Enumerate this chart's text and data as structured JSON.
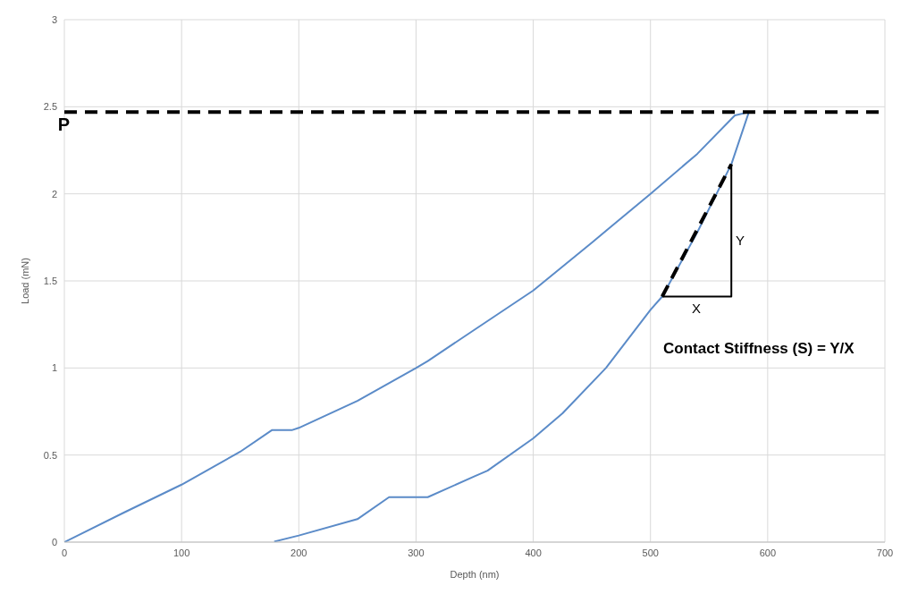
{
  "chart_data": {
    "type": "line",
    "xlabel": "Depth (nm)",
    "ylabel": "Load (mN)",
    "xlim": [
      0,
      700
    ],
    "xticks": [
      0,
      100,
      200,
      300,
      400,
      500,
      600,
      700
    ],
    "ylim": [
      0,
      3
    ],
    "yticks": [
      0,
      0.5,
      1,
      1.5,
      2,
      2.5,
      3
    ],
    "grid": true,
    "marker": "none",
    "series": [
      {
        "color": "#5b8bc8",
        "line_style": "solid",
        "x": [
          0,
          50,
          100,
          150,
          177,
          194,
          200,
          250,
          300,
          310,
          350,
          400,
          450,
          500,
          540,
          572,
          584
        ],
        "values": [
          0,
          0.167,
          0.33,
          0.519,
          0.643,
          0.643,
          0.656,
          0.811,
          1.0,
          1.04,
          1.22,
          1.445,
          1.72,
          2.0,
          2.23,
          2.45,
          2.47
        ]
      },
      {
        "color": "#5b8bc8",
        "line_style": "solid",
        "x": [
          179,
          200,
          250,
          277,
          310,
          350,
          361,
          400,
          425,
          462,
          500,
          510,
          540,
          569,
          584
        ],
        "values": [
          0.003,
          0.038,
          0.132,
          0.258,
          0.258,
          0.378,
          0.41,
          0.596,
          0.74,
          1.0,
          1.334,
          1.41,
          1.78,
          2.17,
          2.47
        ]
      },
      {
        "color": "#000000",
        "line_style": "dashed",
        "x": [
          510,
          569
        ],
        "values": [
          1.41,
          2.17
        ]
      },
      {
        "color": "#000000",
        "line_style": "solid",
        "x": [
          510,
          569,
          569
        ],
        "values": [
          1.41,
          1.41,
          2.17
        ]
      }
    ],
    "ref_lines": [
      {
        "axis": "y",
        "value": 2.47,
        "label": "P",
        "color": "#000000",
        "line_style": "dashed"
      }
    ],
    "annotations": [
      "Y",
      "X",
      "Contact Stiffness (S) = Y/X"
    ]
  }
}
